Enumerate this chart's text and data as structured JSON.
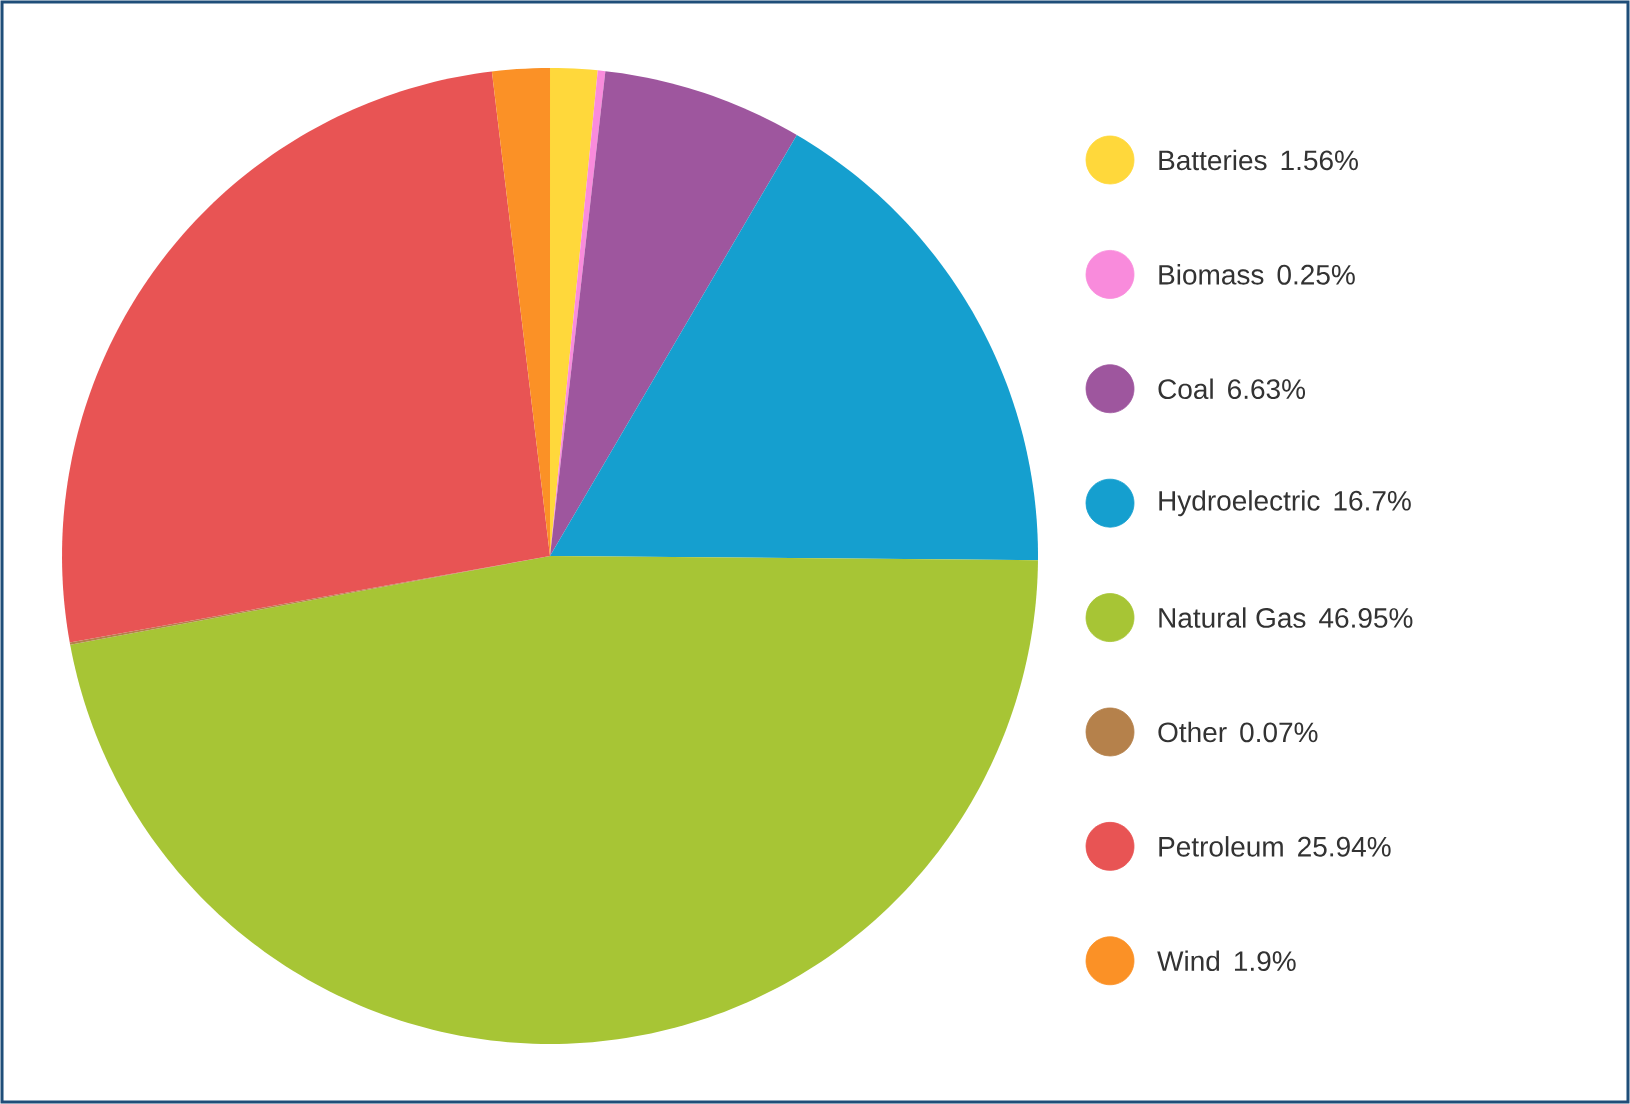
{
  "chart_data": {
    "type": "pie",
    "categories": [
      "Batteries",
      "Biomass",
      "Coal",
      "Hydroelectric",
      "Natural Gas",
      "Other",
      "Petroleum",
      "Wind"
    ],
    "values": [
      1.56,
      0.25,
      6.63,
      16.7,
      46.95,
      0.07,
      25.94,
      1.9
    ],
    "value_labels": [
      "1.56%",
      "0.25%",
      "6.63%",
      "16.7%",
      "46.95%",
      "0.07%",
      "25.94%",
      "1.9%"
    ],
    "colors": [
      "#ffd83b",
      "#f98bdc",
      "#9e569e",
      "#159fcf",
      "#a7c535",
      "#b5814b",
      "#e85454",
      "#fb9126"
    ],
    "legend": "right"
  }
}
